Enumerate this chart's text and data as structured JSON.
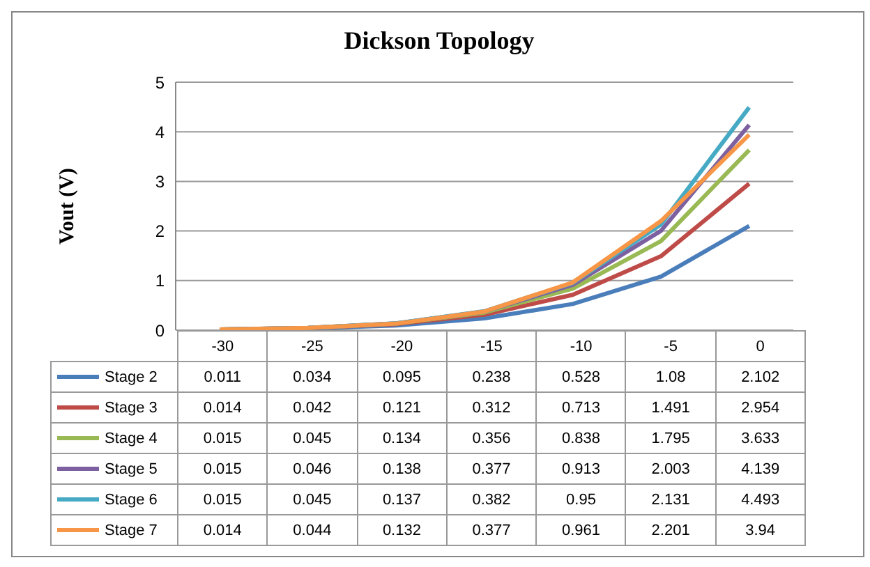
{
  "chart_data": {
    "type": "line",
    "title": "Dickson Topology",
    "ylabel": "Vout (V)",
    "categories": [
      "-30",
      "-25",
      "-20",
      "-15",
      "-10",
      "-5",
      "0"
    ],
    "series": [
      {
        "name": "Stage 2",
        "color": "#4a7ebb",
        "values": [
          0.011,
          0.034,
          0.095,
          0.238,
          0.528,
          1.08,
          2.102
        ]
      },
      {
        "name": "Stage 3",
        "color": "#be4b48",
        "values": [
          0.014,
          0.042,
          0.121,
          0.312,
          0.713,
          1.491,
          2.954
        ]
      },
      {
        "name": "Stage 4",
        "color": "#98b954",
        "values": [
          0.015,
          0.045,
          0.134,
          0.356,
          0.838,
          1.795,
          3.633
        ]
      },
      {
        "name": "Stage 5",
        "color": "#7d60a0",
        "values": [
          0.015,
          0.046,
          0.138,
          0.377,
          0.913,
          2.003,
          4.139
        ]
      },
      {
        "name": "Stage 6",
        "color": "#46aac5",
        "values": [
          0.015,
          0.045,
          0.137,
          0.382,
          0.95,
          2.131,
          4.493
        ]
      },
      {
        "name": "Stage 7",
        "color": "#f79646",
        "values": [
          0.014,
          0.044,
          0.132,
          0.377,
          0.961,
          2.201,
          3.94
        ]
      }
    ],
    "ylim": [
      0,
      5
    ],
    "yticks": [
      0,
      1,
      2,
      3,
      4,
      5
    ],
    "grid": "y",
    "legend": "bottom",
    "data_labels": true
  }
}
